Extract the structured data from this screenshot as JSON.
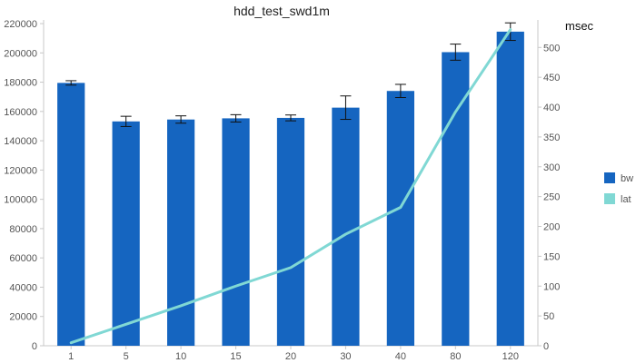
{
  "chart_data": {
    "type": "bar",
    "title": "hdd_test_swd1m",
    "categories": [
      "1",
      "5",
      "10",
      "15",
      "20",
      "30",
      "40",
      "80",
      "120"
    ],
    "series": [
      {
        "name": "bw",
        "type": "bar",
        "axis": "left",
        "color": "#1565c0",
        "values": [
          179500,
          153200,
          154500,
          155300,
          155600,
          162600,
          174000,
          200500,
          214500
        ],
        "error": [
          1500,
          3500,
          2500,
          2500,
          2000,
          8000,
          4500,
          5500,
          6000
        ]
      },
      {
        "name": "lat",
        "type": "line",
        "axis": "right",
        "color": "#80d8d4",
        "values": [
          5,
          36,
          67,
          100,
          131,
          187,
          232,
          392,
          530
        ]
      }
    ],
    "y_left": {
      "label": "",
      "ylim": [
        0,
        220000
      ],
      "ticks": [
        0,
        20000,
        40000,
        60000,
        80000,
        100000,
        120000,
        140000,
        160000,
        180000,
        200000,
        220000
      ]
    },
    "y_right": {
      "label": "msec",
      "ylim": [
        0,
        540
      ],
      "ticks": [
        0,
        50,
        100,
        150,
        200,
        250,
        300,
        350,
        400,
        450,
        500
      ]
    },
    "grid": false,
    "legend_position": "right"
  }
}
